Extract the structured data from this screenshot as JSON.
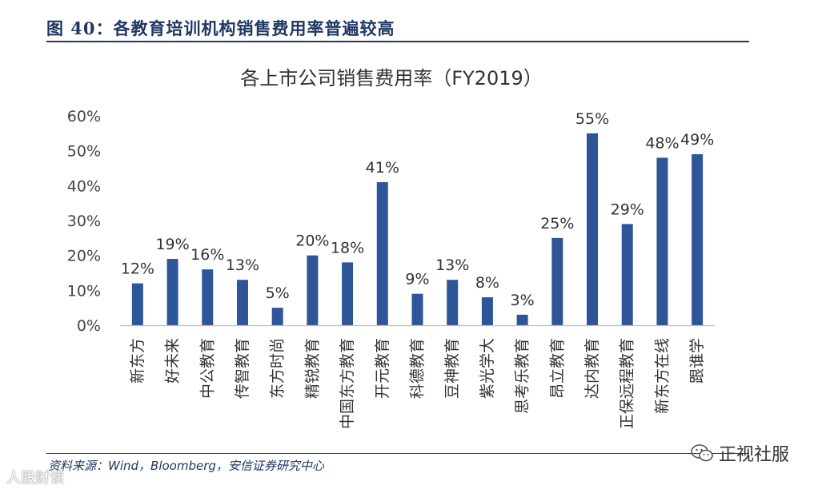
{
  "figure": {
    "title": "图 40：各教育培训机构销售费用率普遍较高",
    "source": "资料来源：Wind，Bloomberg，安信证券研究中心",
    "watermark_left": "人股财读",
    "brand_right": "正视社服"
  },
  "colors": {
    "bar": "#2e5597",
    "header": "#1f3864",
    "axis": "#bfbfbf"
  },
  "chart_data": {
    "type": "bar",
    "title": "各上市公司销售费用率（FY2019）",
    "xlabel": "",
    "ylabel": "",
    "ylim": [
      0,
      60
    ],
    "yticks": [
      0,
      10,
      20,
      30,
      40,
      50,
      60
    ],
    "ytick_labels": [
      "0%",
      "10%",
      "20%",
      "30%",
      "40%",
      "50%",
      "60%"
    ],
    "categories": [
      "新东方",
      "好未来",
      "中公教育",
      "传智教育",
      "东方时尚",
      "精锐教育",
      "中国东方教育",
      "开元教育",
      "科德教育",
      "豆神教育",
      "紫光学大",
      "思考乐教育",
      "昂立教育",
      "达内教育",
      "正保远程教育",
      "新东方在线",
      "跟谁学"
    ],
    "values": [
      12,
      19,
      16,
      13,
      5,
      20,
      18,
      41,
      9,
      13,
      8,
      3,
      25,
      55,
      29,
      48,
      49
    ],
    "data_labels": [
      "12%",
      "19%",
      "16%",
      "13%",
      "5%",
      "20%",
      "18%",
      "41%",
      "9%",
      "13%",
      "8%",
      "3%",
      "25%",
      "55%",
      "29%",
      "48%",
      "49%"
    ],
    "grid": false,
    "legend": "none"
  }
}
